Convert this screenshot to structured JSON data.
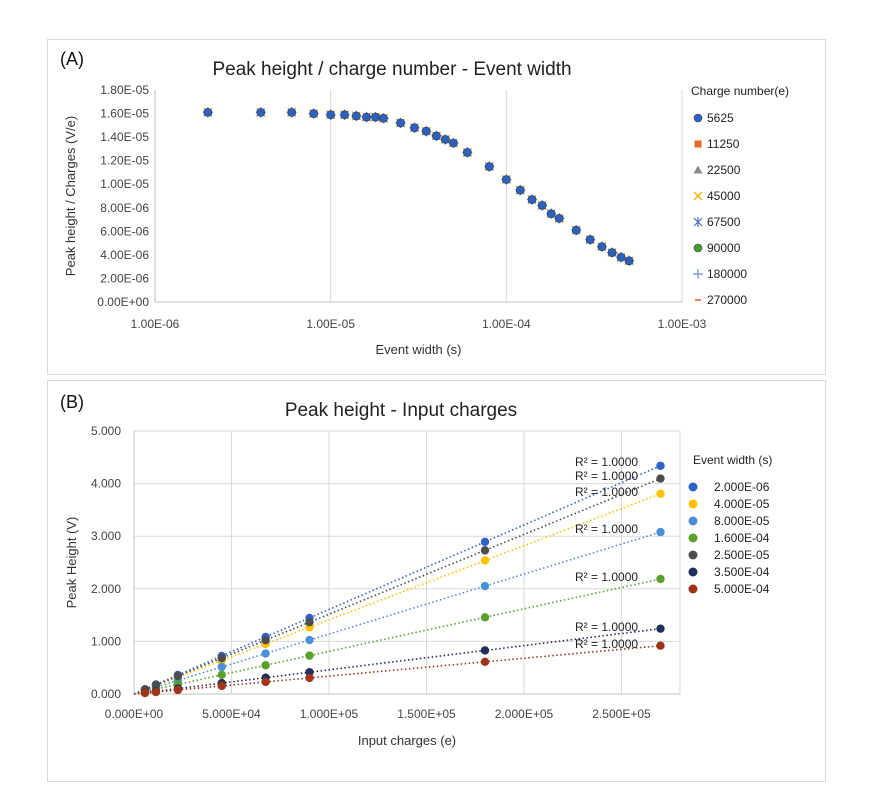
{
  "chart_data": [
    {
      "panel_label": "(A)",
      "type": "scatter",
      "title": "Peak height / charge number - Event width",
      "xlabel": "Event width (s)",
      "ylabel": "Peak height / Charges (V/e)",
      "x_scale": "log",
      "xlim": [
        1e-06,
        0.001
      ],
      "ylim": [
        0,
        1.8e-05
      ],
      "x_ticks": [
        "1.00E-06",
        "1.00E-05",
        "1.00E-04",
        "1.00E-03"
      ],
      "y_ticks": [
        "0.00E+00",
        "2.00E-06",
        "4.00E-06",
        "6.00E-06",
        "8.00E-06",
        "1.00E-05",
        "1.20E-05",
        "1.40E-05",
        "1.60E-05",
        "1.80E-05"
      ],
      "grid": "vertical",
      "legend_title": "Charge number(e)",
      "legend_position": "right",
      "series": [
        {
          "name": "5625",
          "color": "#2e62b8",
          "marker": "circle"
        },
        {
          "name": "11250",
          "color": "#e8662a",
          "marker": "square"
        },
        {
          "name": "22500",
          "color": "#8c8c8c",
          "marker": "triangle"
        },
        {
          "name": "45000",
          "color": "#f0b400",
          "marker": "x"
        },
        {
          "name": "67500",
          "color": "#4472c4",
          "marker": "star"
        },
        {
          "name": "90000",
          "color": "#4e9a27",
          "marker": "circle"
        },
        {
          "name": "180000",
          "color": "#6b8fd6",
          "marker": "plus"
        },
        {
          "name": "270000",
          "color": "#e8662a",
          "marker": "dash"
        }
      ],
      "points": {
        "x": [
          2e-06,
          4e-06,
          6e-06,
          8e-06,
          1e-05,
          1.2e-05,
          1.4e-05,
          1.6e-05,
          1.8e-05,
          2e-05,
          2.5e-05,
          3e-05,
          3.5e-05,
          4e-05,
          4.5e-05,
          5e-05,
          6e-05,
          8e-05,
          0.0001,
          0.00012,
          0.00014,
          0.00016,
          0.00018,
          0.0002,
          0.00025,
          0.0003,
          0.00035,
          0.0004,
          0.00045,
          0.0005
        ],
        "y": [
          1.61e-05,
          1.61e-05,
          1.61e-05,
          1.6e-05,
          1.59e-05,
          1.59e-05,
          1.58e-05,
          1.57e-05,
          1.57e-05,
          1.56e-05,
          1.52e-05,
          1.48e-05,
          1.45e-05,
          1.41e-05,
          1.38e-05,
          1.35e-05,
          1.27e-05,
          1.15e-05,
          1.04e-05,
          9.5e-06,
          8.7e-06,
          8.2e-06,
          7.5e-06,
          7.1e-06,
          6.1e-06,
          5.3e-06,
          4.7e-06,
          4.2e-06,
          3.8e-06,
          3.5e-06
        ]
      }
    },
    {
      "panel_label": "(B)",
      "type": "scatter",
      "title": "Peak height - Input charges",
      "xlabel": "Input charges (e)",
      "ylabel": "Peak Height (V)",
      "xlim": [
        0,
        280000
      ],
      "ylim": [
        0,
        5
      ],
      "x_ticks": [
        "0.000E+00",
        "5.000E+04",
        "1.000E+05",
        "1.500E+05",
        "2.000E+05",
        "2.500E+05"
      ],
      "y_ticks": [
        "0.000",
        "1.000",
        "2.000",
        "3.000",
        "4.000",
        "5.000"
      ],
      "grid": "both",
      "legend_title": "Event width (s)",
      "legend_position": "right",
      "x": [
        5625,
        11250,
        22500,
        45000,
        67500,
        90000,
        180000,
        270000
      ],
      "series": [
        {
          "name": "2.000E-06",
          "color": "#2e62c8",
          "slope": 1.607e-05,
          "r2": "R² = 1.0000"
        },
        {
          "name": "4.000E-05",
          "color": "#ffc000",
          "slope": 1.41e-05,
          "r2": "R² = 1.0000"
        },
        {
          "name": "8.000E-05",
          "color": "#4a90d9",
          "slope": 1.14e-05,
          "r2": "R² = 1.0000"
        },
        {
          "name": "1.600E-04",
          "color": "#5aa02c",
          "slope": 8.1e-06,
          "r2": "R² = 1.0000"
        },
        {
          "name": "2.500E-05",
          "color": "#4d4d4d",
          "slope": 1.517e-05,
          "r2": "R² = 1.0000"
        },
        {
          "name": "3.500E-04",
          "color": "#1f2f5e",
          "slope": 4.6e-06,
          "r2": "R² = 1.0000"
        },
        {
          "name": "5.000E-04",
          "color": "#a0341a",
          "slope": 3.4e-06,
          "r2": "R² = 1.0000"
        }
      ]
    }
  ]
}
